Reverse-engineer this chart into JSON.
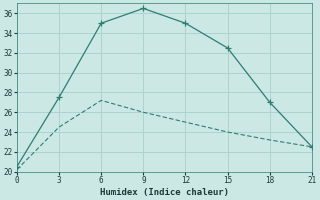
{
  "xlabel": "Humidex (Indice chaleur)",
  "background_color": "#cce8e4",
  "grid_color": "#aad4cf",
  "line1_x": [
    0,
    3,
    6,
    9,
    12,
    15,
    18,
    21
  ],
  "line1_y": [
    20.5,
    27.5,
    35,
    36.5,
    35,
    32.5,
    27,
    22.5
  ],
  "line2_x": [
    0,
    3,
    6,
    9,
    12,
    15,
    18,
    21
  ],
  "line2_y": [
    20.2,
    24.5,
    27.2,
    26.0,
    25.0,
    24.0,
    23.2,
    22.5
  ],
  "line_color": "#2d7d74",
  "xlim": [
    0,
    21
  ],
  "ylim": [
    20,
    37
  ],
  "xticks": [
    0,
    3,
    6,
    9,
    12,
    15,
    18,
    21
  ],
  "yticks": [
    20,
    22,
    24,
    26,
    28,
    30,
    32,
    34,
    36
  ]
}
